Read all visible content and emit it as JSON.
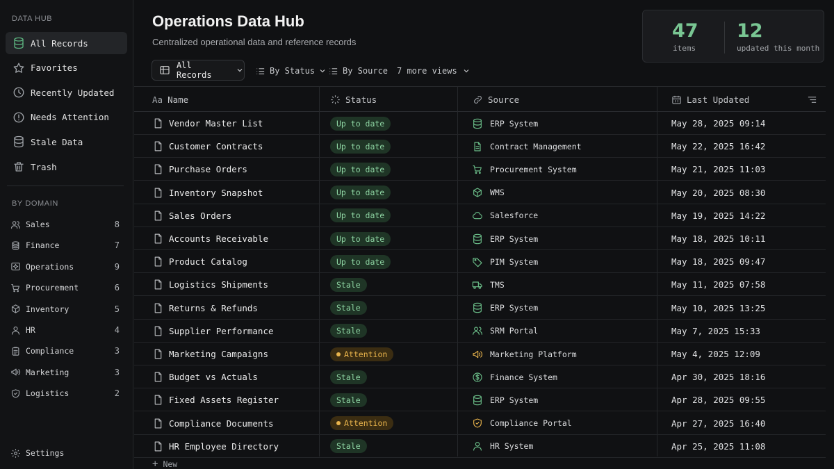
{
  "sidebar": {
    "section_title": "DATA HUB",
    "nav": [
      {
        "label": "All Records",
        "icon": "database-icon",
        "active": true
      },
      {
        "label": "Favorites",
        "icon": "star-icon"
      },
      {
        "label": "Recently Updated",
        "icon": "clock-icon"
      },
      {
        "label": "Needs Attention",
        "icon": "alert-icon"
      },
      {
        "label": "Stale Data",
        "icon": "database-icon"
      },
      {
        "label": "Trash",
        "icon": "trash-icon"
      }
    ],
    "domain_title": "BY DOMAIN",
    "domains": [
      {
        "label": "Sales",
        "count": "8",
        "icon": "users-icon"
      },
      {
        "label": "Finance",
        "count": "7",
        "icon": "coins-icon"
      },
      {
        "label": "Operations",
        "count": "9",
        "icon": "operations-icon"
      },
      {
        "label": "Procurement",
        "count": "6",
        "icon": "cart-icon"
      },
      {
        "label": "Inventory",
        "count": "5",
        "icon": "box-icon"
      },
      {
        "label": "HR",
        "count": "4",
        "icon": "user-icon"
      },
      {
        "label": "Compliance",
        "count": "3",
        "icon": "clipboard-icon"
      },
      {
        "label": "Marketing",
        "count": "3",
        "icon": "megaphone-icon"
      },
      {
        "label": "Logistics",
        "count": "2",
        "icon": "shield-icon"
      }
    ],
    "settings_label": "Settings"
  },
  "header": {
    "title": "Operations Data Hub",
    "subtitle": "Centralized operational data and reference records"
  },
  "stats": {
    "items_value": "47",
    "items_label": "items",
    "updated_value": "12",
    "updated_label": "updated this month"
  },
  "views": {
    "current": "All Records",
    "by_status": "By Status",
    "by_source": "By Source",
    "more": "7 more views"
  },
  "table": {
    "columns": {
      "name": "Name",
      "name_prefix": "Aa",
      "status": "Status",
      "source": "Source",
      "updated": "Last Updated"
    },
    "rows": [
      {
        "name": "Vendor Master List",
        "status": "Up to date",
        "status_kind": "ok",
        "source": "ERP System",
        "source_icon": "database-icon",
        "updated": "May 28, 2025 09:14"
      },
      {
        "name": "Customer Contracts",
        "status": "Up to date",
        "status_kind": "ok",
        "source": "Contract Management",
        "source_icon": "document-icon",
        "updated": "May 22, 2025 16:42"
      },
      {
        "name": "Purchase Orders",
        "status": "Up to date",
        "status_kind": "ok",
        "source": "Procurement System",
        "source_icon": "cart-icon",
        "updated": "May 21, 2025 11:03"
      },
      {
        "name": "Inventory Snapshot",
        "status": "Up to date",
        "status_kind": "ok",
        "source": "WMS",
        "source_icon": "box-icon",
        "updated": "May 20, 2025 08:30"
      },
      {
        "name": "Sales Orders",
        "status": "Up to date",
        "status_kind": "ok",
        "source": "Salesforce",
        "source_icon": "cloud-icon",
        "updated": "May 19, 2025 14:22"
      },
      {
        "name": "Accounts Receivable",
        "status": "Up to date",
        "status_kind": "ok",
        "source": "ERP System",
        "source_icon": "database-icon",
        "updated": "May 18, 2025 10:11"
      },
      {
        "name": "Product Catalog",
        "status": "Up to date",
        "status_kind": "ok",
        "source": "PIM System",
        "source_icon": "tag-icon",
        "updated": "May 18, 2025 09:47"
      },
      {
        "name": "Logistics Shipments",
        "status": "Stale",
        "status_kind": "stale",
        "source": "TMS",
        "source_icon": "truck-icon",
        "updated": "May 11, 2025 07:58"
      },
      {
        "name": "Returns & Refunds",
        "status": "Stale",
        "status_kind": "stale",
        "source": "ERP System",
        "source_icon": "database-icon",
        "updated": "May 10, 2025 13:25"
      },
      {
        "name": "Supplier Performance",
        "status": "Stale",
        "status_kind": "stale",
        "source": "SRM Portal",
        "source_icon": "users-icon",
        "updated": "May 7, 2025 15:33"
      },
      {
        "name": "Marketing Campaigns",
        "status": "Attention",
        "status_kind": "attn",
        "source": "Marketing Platform",
        "source_icon": "megaphone-icon",
        "updated": "May 4, 2025 12:09"
      },
      {
        "name": "Budget vs Actuals",
        "status": "Stale",
        "status_kind": "stale",
        "source": "Finance System",
        "source_icon": "dollar-icon",
        "updated": "Apr 30, 2025 18:16"
      },
      {
        "name": "Fixed Assets Register",
        "status": "Stale",
        "status_kind": "stale",
        "source": "ERP System",
        "source_icon": "database-icon",
        "updated": "Apr 28, 2025 09:55"
      },
      {
        "name": "Compliance Documents",
        "status": "Attention",
        "status_kind": "attn",
        "source": "Compliance Portal",
        "source_icon": "shield-check-icon",
        "updated": "Apr 27, 2025 16:40"
      },
      {
        "name": "HR Employee Directory",
        "status": "Stale",
        "status_kind": "stale",
        "source": "HR System",
        "source_icon": "user-icon",
        "updated": "Apr 25, 2025 11:08"
      }
    ],
    "new_label": "New"
  }
}
